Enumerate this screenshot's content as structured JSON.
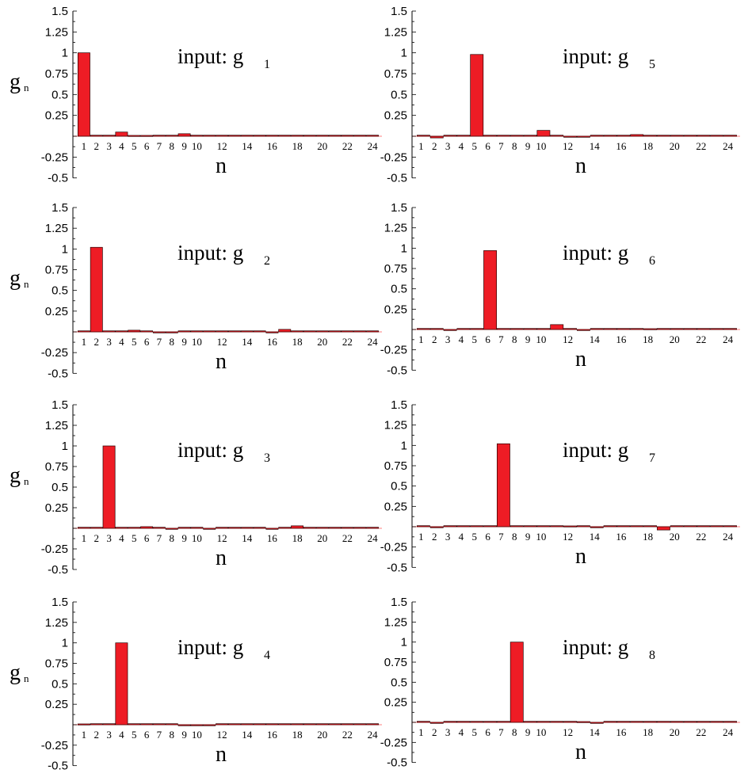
{
  "colors": {
    "bar": "#ee1c25",
    "bar_edge": "#2a0000",
    "zero_line": "#ff9999",
    "axis": "#000000"
  },
  "y_ticks": [
    "1.5",
    "1.25",
    "1",
    "0.75",
    "0.5",
    "0.25",
    "-0.25",
    "-0.5"
  ],
  "y_tick_values": [
    1.5,
    1.25,
    1,
    0.75,
    0.5,
    0.25,
    -0.25,
    -0.5
  ],
  "x_ticks_a": [
    "1",
    "2",
    "3",
    "4",
    "5",
    "6",
    "7",
    "8",
    "9",
    "10",
    "12",
    "14",
    "16",
    "18",
    "20",
    "22",
    "24"
  ],
  "x_ticks_b": [
    "1",
    "2",
    "3",
    "4",
    "5",
    "6",
    "7",
    "8",
    "9",
    "10",
    "12",
    "14",
    "16",
    "18",
    "20",
    "22",
    "24"
  ],
  "x_tick_values": [
    1,
    2,
    3,
    4,
    5,
    6,
    7,
    8,
    9,
    10,
    12,
    14,
    16,
    18,
    20,
    22,
    24
  ],
  "chart_data": [
    {
      "type": "bar",
      "title": "input: g",
      "title_sub": "1",
      "xlabel": "n",
      "ylabel": "g",
      "ylabel_sub": "n",
      "ylim": [
        -0.5,
        1.5
      ],
      "x": [
        1,
        2,
        3,
        4,
        5,
        6,
        7,
        8,
        9,
        10,
        11,
        12,
        13,
        14,
        15,
        16,
        17,
        18,
        19,
        20,
        21,
        22,
        23,
        24
      ],
      "values": [
        1.0,
        0,
        0,
        0.05,
        0.01,
        0.01,
        0,
        0,
        0.03,
        0,
        0,
        0,
        0,
        0,
        0,
        0,
        0,
        0,
        0,
        0,
        0,
        0,
        0,
        0
      ]
    },
    {
      "type": "bar",
      "title": "input: g",
      "title_sub": "2",
      "xlabel": "n",
      "ylabel": "g",
      "ylabel_sub": "n",
      "ylim": [
        -0.5,
        1.5
      ],
      "x": [
        1,
        2,
        3,
        4,
        5,
        6,
        7,
        8,
        9,
        10,
        11,
        12,
        13,
        14,
        15,
        16,
        17,
        18,
        19,
        20,
        21,
        22,
        23,
        24
      ],
      "values": [
        0,
        1.02,
        0,
        0,
        0.02,
        0,
        -0.01,
        -0.01,
        0,
        0,
        0,
        0,
        0,
        0,
        0,
        -0.01,
        0.03,
        0,
        0,
        0,
        0,
        0,
        0,
        0
      ]
    },
    {
      "type": "bar",
      "title": "input: g",
      "title_sub": "3",
      "xlabel": "n",
      "ylabel": "g",
      "ylabel_sub": "n",
      "ylim": [
        -0.5,
        1.5
      ],
      "x": [
        1,
        2,
        3,
        4,
        5,
        6,
        7,
        8,
        9,
        10,
        11,
        12,
        13,
        14,
        15,
        16,
        17,
        18,
        19,
        20,
        21,
        22,
        23,
        24
      ],
      "values": [
        0,
        0,
        1.0,
        0,
        0,
        0.02,
        0,
        -0.01,
        0,
        0,
        -0.01,
        0,
        0,
        0,
        0,
        -0.01,
        0,
        0.03,
        0,
        0,
        0,
        0,
        0,
        0
      ]
    },
    {
      "type": "bar",
      "title": "input: g",
      "title_sub": "4",
      "xlabel": "n",
      "ylabel": "g",
      "ylabel_sub": "n",
      "ylim": [
        -0.5,
        1.5
      ],
      "x": [
        1,
        2,
        3,
        4,
        5,
        6,
        7,
        8,
        9,
        10,
        11,
        12,
        13,
        14,
        15,
        16,
        17,
        18,
        19,
        20,
        21,
        22,
        23,
        24
      ],
      "values": [
        0.01,
        0,
        0,
        1.0,
        0,
        0,
        0,
        0,
        -0.01,
        -0.01,
        -0.01,
        0,
        0,
        0,
        0,
        0,
        0,
        0,
        0,
        0,
        0,
        0,
        0,
        0
      ]
    },
    {
      "type": "bar",
      "title": "input: g",
      "title_sub": "5",
      "xlabel": "n",
      "ylabel": "g",
      "ylabel_sub": "n",
      "ylim": [
        -0.5,
        1.5
      ],
      "x": [
        1,
        2,
        3,
        4,
        5,
        6,
        7,
        8,
        9,
        10,
        11,
        12,
        13,
        14,
        15,
        16,
        17,
        18,
        19,
        20,
        21,
        22,
        23,
        24
      ],
      "values": [
        0,
        -0.02,
        0,
        0,
        0.98,
        0,
        0,
        0,
        0,
        0.07,
        0,
        -0.01,
        -0.01,
        0,
        0,
        0,
        0.02,
        0,
        0,
        0,
        0,
        0,
        0,
        0
      ]
    },
    {
      "type": "bar",
      "title": "input: g",
      "title_sub": "6",
      "xlabel": "n",
      "ylabel": "g",
      "ylabel_sub": "n",
      "ylim": [
        -0.5,
        1.5
      ],
      "x": [
        1,
        2,
        3,
        4,
        5,
        6,
        7,
        8,
        9,
        10,
        11,
        12,
        13,
        14,
        15,
        16,
        17,
        18,
        19,
        20,
        21,
        22,
        23,
        24
      ],
      "values": [
        0,
        0,
        -0.01,
        0,
        0,
        0.97,
        0,
        0,
        0,
        0,
        0.06,
        0,
        -0.01,
        0,
        0,
        0,
        0,
        0.01,
        0,
        0,
        0,
        0,
        0,
        0
      ]
    },
    {
      "type": "bar",
      "title": "input: g",
      "title_sub": "7",
      "xlabel": "n",
      "ylabel": "g",
      "ylabel_sub": "n",
      "ylim": [
        -0.5,
        1.5
      ],
      "x": [
        1,
        2,
        3,
        4,
        5,
        6,
        7,
        8,
        9,
        10,
        11,
        12,
        13,
        14,
        15,
        16,
        17,
        18,
        19,
        20,
        21,
        22,
        23,
        24
      ],
      "values": [
        0,
        -0.01,
        0,
        0,
        0,
        0,
        1.02,
        0,
        0,
        0,
        0,
        0.01,
        0,
        -0.01,
        0,
        0,
        0,
        0,
        -0.04,
        0,
        0,
        0,
        0,
        0
      ]
    },
    {
      "type": "bar",
      "title": "input: g",
      "title_sub": "8",
      "xlabel": "n",
      "ylabel": "g",
      "ylabel_sub": "n",
      "ylim": [
        -0.5,
        1.5
      ],
      "x": [
        1,
        2,
        3,
        4,
        5,
        6,
        7,
        8,
        9,
        10,
        11,
        12,
        13,
        14,
        15,
        16,
        17,
        18,
        19,
        20,
        21,
        22,
        23,
        24
      ],
      "values": [
        0,
        -0.01,
        0,
        0,
        0,
        0,
        0,
        1.0,
        0,
        0,
        0,
        0,
        0.01,
        -0.01,
        0,
        0,
        0,
        0,
        0,
        0,
        0,
        0,
        0,
        0
      ]
    }
  ]
}
